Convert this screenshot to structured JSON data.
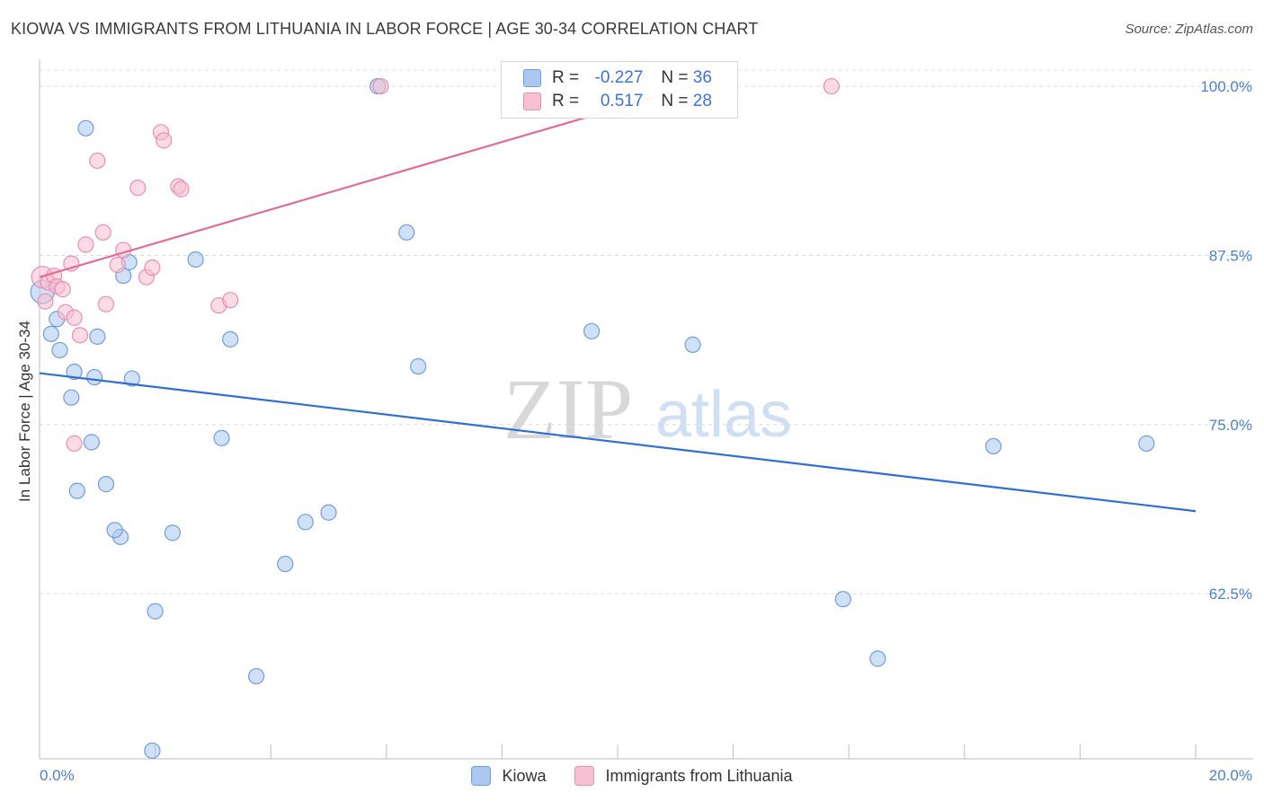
{
  "header": {
    "title": "KIOWA VS IMMIGRANTS FROM LITHUANIA IN LABOR FORCE | AGE 30-34 CORRELATION CHART",
    "source": "Source: ZipAtlas.com"
  },
  "watermark": {
    "zip": "ZIP",
    "atlas": "atlas"
  },
  "legend_top": {
    "rows": [
      {
        "r_label": "R =",
        "r_value": "-0.227",
        "n_label": "N =",
        "n_value": "36",
        "color": "#aac8f0",
        "stroke": "#6f9de0"
      },
      {
        "r_label": "R =",
        "r_value": "0.517",
        "n_label": "N =",
        "n_value": "28",
        "color": "#f8c0d2",
        "stroke": "#ec8db0"
      }
    ]
  },
  "chart_data": {
    "type": "scatter",
    "title": "KIOWA VS IMMIGRANTS FROM LITHUANIA IN LABOR FORCE | AGE 30-34 CORRELATION CHART",
    "xlabel": "",
    "ylabel": "In Labor Force | Age 30-34",
    "xlim": [
      0,
      20
    ],
    "ylim": [
      50.3,
      101.2
    ],
    "x_tick_labels": [
      "0.0%",
      "20.0%"
    ],
    "y_ticks": [
      62.5,
      75.0,
      87.5,
      100.0
    ],
    "y_tick_labels": [
      "62.5%",
      "75.0%",
      "87.5%",
      "100.0%"
    ],
    "grid": true,
    "series": [
      {
        "name": "Kiowa",
        "color": "#aac8f0",
        "stroke": "#6f9de0",
        "line_color": "#2f6fd0",
        "trend": {
          "x": [
            0.0,
            20.0
          ],
          "y": [
            78.8,
            68.6
          ]
        },
        "x": [
          0.05,
          0.2,
          0.35,
          0.3,
          0.8,
          1.0,
          0.95,
          0.6,
          0.55,
          1.15,
          1.6,
          2.3,
          2.0,
          1.4,
          1.3,
          0.9,
          0.65,
          1.45,
          1.55,
          2.7,
          3.3,
          3.15,
          3.75,
          4.6,
          4.25,
          5.0,
          5.85,
          6.35,
          6.55,
          9.55,
          11.3,
          13.9,
          14.5,
          16.5,
          19.15,
          1.95
        ],
        "y": [
          84.8,
          81.7,
          80.5,
          82.8,
          96.9,
          81.5,
          78.5,
          78.9,
          77.0,
          70.6,
          78.4,
          67.0,
          61.2,
          66.7,
          67.2,
          73.7,
          70.1,
          86.0,
          87.0,
          87.2,
          81.3,
          74.0,
          56.4,
          67.8,
          64.7,
          68.5,
          100.0,
          89.2,
          79.3,
          81.9,
          80.9,
          62.1,
          57.7,
          73.4,
          73.6,
          50.9
        ]
      },
      {
        "name": "Immigrants from Lithuania",
        "color": "#f8c0d2",
        "stroke": "#ec8db0",
        "line_color": "#e06c96",
        "trend": {
          "x": [
            0.0,
            11.3
          ],
          "y": [
            85.9,
            100.0
          ]
        },
        "x": [
          0.05,
          0.15,
          0.25,
          0.3,
          0.4,
          0.45,
          0.55,
          0.6,
          0.7,
          0.8,
          1.0,
          1.1,
          1.15,
          1.35,
          1.45,
          1.7,
          1.85,
          1.95,
          2.1,
          2.15,
          2.4,
          2.45,
          3.1,
          3.3,
          5.9,
          13.7,
          0.1,
          0.6
        ],
        "y": [
          85.9,
          85.5,
          86.0,
          85.2,
          85.0,
          83.3,
          86.9,
          82.9,
          81.6,
          88.3,
          94.5,
          89.2,
          83.9,
          86.8,
          87.9,
          92.5,
          85.9,
          86.6,
          96.6,
          96.0,
          92.6,
          92.4,
          83.8,
          84.2,
          100.0,
          100.0,
          84.1,
          73.6
        ]
      }
    ]
  }
}
